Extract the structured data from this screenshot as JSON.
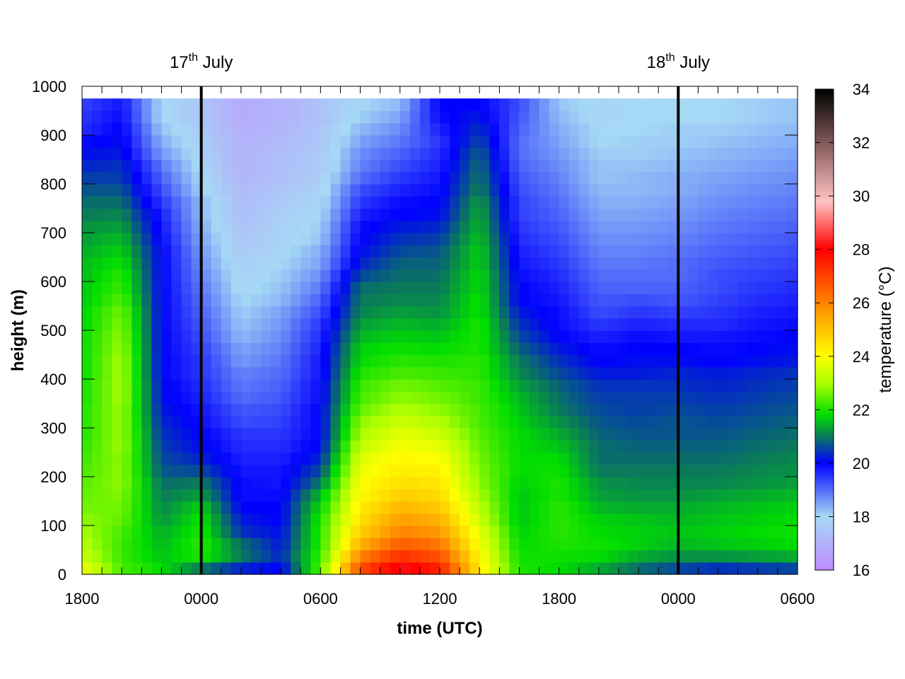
{
  "chart_data": {
    "type": "heatmap",
    "xlabel": "time (UTC)",
    "ylabel": "height (m)",
    "colorbar_label": "temperature (°C)",
    "x_tick_labels": [
      "1800",
      "0000",
      "0600",
      "1200",
      "1800",
      "0000",
      "0600"
    ],
    "x_range_hours": [
      0,
      36
    ],
    "ylim": [
      0,
      1000
    ],
    "y_ticks": [
      0,
      100,
      200,
      300,
      400,
      500,
      600,
      700,
      800,
      900,
      1000
    ],
    "colorbar_range": [
      16,
      34
    ],
    "colorbar_ticks": [
      16,
      18,
      20,
      22,
      24,
      26,
      28,
      30,
      32,
      34
    ],
    "colormap": [
      {
        "value": 16.0,
        "color": "#bf8cff"
      },
      {
        "value": 18.0,
        "color": "#a6d9f5"
      },
      {
        "value": 20.0,
        "color": "#0000ff"
      },
      {
        "value": 21.0,
        "color": "#0a7a5a"
      },
      {
        "value": 21.8,
        "color": "#00dd00"
      },
      {
        "value": 23.0,
        "color": "#aaff00"
      },
      {
        "value": 24.0,
        "color": "#ffff00"
      },
      {
        "value": 25.5,
        "color": "#ffa500"
      },
      {
        "value": 28.0,
        "color": "#ff0000"
      },
      {
        "value": 29.8,
        "color": "#ffc4c4"
      },
      {
        "value": 31.5,
        "color": "#a07070"
      },
      {
        "value": 34.0,
        "color": "#000000"
      }
    ],
    "heights_m": [
      0,
      25,
      50,
      75,
      100,
      125,
      150,
      175,
      200,
      225,
      250,
      275,
      300,
      325,
      350,
      375,
      400,
      425,
      450,
      475,
      500,
      525,
      550,
      575,
      600,
      625,
      650,
      675,
      700,
      725,
      750,
      775,
      800,
      825,
      850,
      875,
      900,
      925,
      950
    ],
    "profiles": [
      {
        "t": 0,
        "T": [
          23.8,
          23.4,
          23.2,
          23.0,
          22.8,
          22.6,
          22.5,
          22.4,
          22.3,
          22.2,
          22.1,
          22.0,
          22.0,
          22.0,
          21.9,
          21.9,
          21.8,
          21.8,
          21.8,
          21.8,
          21.7,
          21.7,
          21.6,
          21.6,
          21.5,
          21.5,
          21.4,
          21.3,
          21.2,
          21.0,
          20.9,
          20.7,
          20.5,
          20.3,
          20.1,
          19.9,
          19.6,
          19.5,
          19.4
        ]
      },
      {
        "t": 2,
        "T": [
          22.3,
          22.2,
          22.2,
          22.3,
          22.5,
          22.6,
          22.7,
          22.8,
          22.8,
          22.8,
          22.9,
          22.9,
          22.9,
          22.9,
          23.0,
          23.0,
          23.0,
          23.0,
          22.9,
          22.8,
          22.7,
          22.6,
          22.4,
          22.2,
          22.1,
          21.9,
          21.7,
          21.5,
          21.3,
          21.1,
          20.9,
          20.7,
          20.5,
          20.4,
          20.2,
          20.1,
          20.0,
          19.9,
          19.8
        ]
      },
      {
        "t": 4,
        "T": [
          21.8,
          21.6,
          21.5,
          21.4,
          21.2,
          21.1,
          21.0,
          20.9,
          20.7,
          20.6,
          20.5,
          20.4,
          20.3,
          20.2,
          20.1,
          20.1,
          20.0,
          20.0,
          20.0,
          20.0,
          20.0,
          20.0,
          20.0,
          20.0,
          20.0,
          20.0,
          20.0,
          19.9,
          19.8,
          19.7,
          19.5,
          19.3,
          19.1,
          18.9,
          18.6,
          18.4,
          18.2,
          18.0,
          18.0
        ]
      },
      {
        "t": 6,
        "T": [
          21.0,
          22.0,
          22.1,
          22.0,
          21.9,
          21.7,
          21.3,
          21.0,
          20.6,
          20.3,
          20.1,
          20.0,
          19.9,
          19.8,
          19.7,
          19.6,
          19.5,
          19.5,
          19.4,
          19.3,
          19.2,
          19.1,
          19.0,
          18.9,
          18.8,
          18.7,
          18.6,
          18.5,
          18.4,
          18.3,
          18.3,
          18.1,
          18.0,
          17.9,
          17.8,
          17.7,
          17.6,
          17.5,
          17.5
        ]
      },
      {
        "t": 8,
        "T": [
          20.3,
          21.0,
          20.9,
          20.4,
          20.2,
          20.0,
          19.9,
          19.9,
          19.8,
          19.7,
          19.6,
          19.5,
          19.3,
          19.2,
          19.0,
          18.9,
          18.8,
          18.6,
          18.5,
          18.3,
          18.2,
          18.1,
          18.0,
          17.9,
          17.8,
          17.7,
          17.6,
          17.5,
          17.4,
          17.3,
          17.3,
          17.2,
          17.1,
          17.0,
          17.0,
          17.0,
          16.9,
          16.8,
          16.8
        ]
      },
      {
        "t": 10,
        "T": [
          20.0,
          20.3,
          20.2,
          20.1,
          20.0,
          20.0,
          19.9,
          19.8,
          19.8,
          19.7,
          19.6,
          19.5,
          19.4,
          19.3,
          19.2,
          19.1,
          19.0,
          18.9,
          18.8,
          18.7,
          18.6,
          18.5,
          18.3,
          18.2,
          18.1,
          18.0,
          17.9,
          17.8,
          17.8,
          17.7,
          17.6,
          17.5,
          17.4,
          17.3,
          17.3,
          17.2,
          17.1,
          17.0,
          17.0
        ]
      },
      {
        "t": 12,
        "T": [
          22.4,
          22.2,
          22.1,
          22.1,
          22.0,
          21.8,
          21.5,
          21.0,
          20.6,
          20.3,
          20.1,
          20.0,
          20.0,
          20.0,
          19.9,
          19.9,
          19.8,
          19.8,
          19.7,
          19.6,
          19.5,
          19.3,
          19.1,
          18.9,
          18.7,
          18.5,
          18.4,
          18.2,
          18.1,
          18.0,
          17.9,
          17.8,
          17.7,
          17.6,
          17.6,
          17.5,
          17.5,
          17.4,
          17.4
        ]
      },
      {
        "t": 14,
        "T": [
          26.8,
          26.0,
          25.3,
          24.8,
          24.5,
          24.3,
          24.1,
          24.0,
          23.8,
          23.6,
          23.3,
          23.0,
          22.8,
          22.5,
          22.3,
          22.2,
          22.0,
          21.8,
          21.7,
          21.5,
          21.3,
          21.1,
          21.0,
          20.9,
          20.6,
          20.3,
          20.1,
          20.0,
          19.9,
          19.7,
          19.5,
          19.3,
          19.0,
          18.8,
          18.7,
          18.5,
          18.3,
          18.1,
          18.0
        ]
      },
      {
        "t": 16,
        "T": [
          28.2,
          27.3,
          26.6,
          26.0,
          25.6,
          25.2,
          24.8,
          24.5,
          24.3,
          24.1,
          23.9,
          23.7,
          23.4,
          23.1,
          22.8,
          22.6,
          22.3,
          22.1,
          21.9,
          21.7,
          21.5,
          21.3,
          21.1,
          21.0,
          20.9,
          20.8,
          20.6,
          20.4,
          20.2,
          20.0,
          19.9,
          19.7,
          19.5,
          19.3,
          19.1,
          18.9,
          18.7,
          18.5,
          18.3
        ]
      },
      {
        "t": 18,
        "T": [
          27.5,
          26.8,
          26.2,
          25.7,
          25.3,
          24.9,
          24.6,
          24.4,
          24.2,
          24.0,
          23.7,
          23.4,
          23.1,
          22.8,
          22.6,
          22.4,
          22.2,
          22.0,
          21.8,
          21.6,
          21.4,
          21.2,
          21.1,
          21.0,
          20.9,
          20.8,
          20.7,
          20.5,
          20.3,
          20.1,
          20.0,
          19.9,
          19.8,
          19.7,
          19.6,
          19.5,
          19.7,
          19.9,
          20.0
        ]
      },
      {
        "t": 20,
        "T": [
          24.3,
          24.1,
          23.9,
          23.7,
          23.4,
          23.2,
          23.0,
          22.8,
          22.7,
          22.6,
          22.5,
          22.4,
          22.3,
          22.3,
          22.2,
          22.2,
          22.1,
          22.1,
          22.0,
          22.0,
          22.0,
          21.9,
          21.9,
          21.8,
          21.8,
          21.7,
          21.7,
          21.6,
          21.5,
          21.4,
          21.3,
          21.1,
          21.0,
          20.9,
          20.8,
          20.6,
          20.4,
          20.2,
          20.0
        ]
      },
      {
        "t": 22,
        "T": [
          22.0,
          21.9,
          21.8,
          21.7,
          21.6,
          21.6,
          21.6,
          21.7,
          21.8,
          21.8,
          21.8,
          21.8,
          21.7,
          21.6,
          21.5,
          21.3,
          21.1,
          21.0,
          20.8,
          20.6,
          20.4,
          20.2,
          20.0,
          20.0,
          19.9,
          19.8,
          19.7,
          19.6,
          19.5,
          19.4,
          19.4,
          19.3,
          19.2,
          19.1,
          19.0,
          19.0,
          19.1,
          19.2,
          19.3
        ]
      },
      {
        "t": 24,
        "T": [
          21.8,
          21.9,
          22.0,
          22.1,
          22.1,
          22.1,
          22.0,
          22.0,
          21.9,
          21.8,
          21.6,
          21.4,
          21.2,
          21.0,
          20.9,
          20.8,
          20.6,
          20.4,
          20.2,
          20.0,
          19.9,
          19.9,
          19.8,
          19.7,
          19.6,
          19.5,
          19.4,
          19.3,
          19.2,
          19.1,
          19.0,
          18.9,
          18.8,
          18.7,
          18.6,
          18.5,
          18.4,
          18.3,
          18.2
        ]
      },
      {
        "t": 26,
        "T": [
          21.4,
          21.8,
          21.9,
          21.8,
          21.7,
          21.5,
          21.3,
          21.2,
          21.0,
          20.9,
          20.9,
          20.8,
          20.7,
          20.6,
          20.5,
          20.4,
          20.2,
          20.0,
          19.9,
          19.7,
          19.5,
          19.3,
          19.2,
          19.1,
          19.0,
          18.9,
          18.8,
          18.7,
          18.6,
          18.5,
          18.4,
          18.3,
          18.2,
          18.2,
          18.1,
          18.0,
          18.0,
          17.9,
          17.9
        ]
      },
      {
        "t": 28,
        "T": [
          20.9,
          21.4,
          21.7,
          21.7,
          21.6,
          21.4,
          21.2,
          21.1,
          21.0,
          20.9,
          20.8,
          20.7,
          20.6,
          20.5,
          20.5,
          20.4,
          20.2,
          20.1,
          20.0,
          19.9,
          19.7,
          19.5,
          19.3,
          19.1,
          19.0,
          18.9,
          18.8,
          18.7,
          18.6,
          18.5,
          18.4,
          18.3,
          18.3,
          18.2,
          18.1,
          18.1,
          18.0,
          18.0,
          18.0
        ]
      },
      {
        "t": 30,
        "T": [
          20.6,
          21.2,
          21.5,
          21.6,
          21.5,
          21.4,
          21.2,
          21.1,
          21.0,
          20.9,
          20.8,
          20.7,
          20.7,
          20.6,
          20.5,
          20.4,
          20.3,
          20.1,
          20.0,
          19.8,
          19.6,
          19.4,
          19.2,
          19.1,
          19.0,
          19.0,
          18.9,
          18.8,
          18.7,
          18.6,
          18.5,
          18.4,
          18.4,
          18.3,
          18.2,
          18.1,
          18.1,
          18.0,
          18.0
        ]
      },
      {
        "t": 32,
        "T": [
          20.4,
          21.2,
          21.6,
          21.7,
          21.6,
          21.5,
          21.3,
          21.1,
          21.0,
          20.9,
          20.8,
          20.7,
          20.6,
          20.5,
          20.4,
          20.3,
          20.2,
          20.0,
          19.9,
          19.8,
          19.6,
          19.5,
          19.4,
          19.3,
          19.3,
          19.2,
          19.1,
          19.0,
          18.9,
          18.8,
          18.7,
          18.6,
          18.5,
          18.4,
          18.3,
          18.2,
          18.1,
          18.0,
          18.0
        ]
      },
      {
        "t": 34,
        "T": [
          20.5,
          21.3,
          21.7,
          21.8,
          21.7,
          21.6,
          21.4,
          21.2,
          21.1,
          21.0,
          20.9,
          20.8,
          20.7,
          20.6,
          20.5,
          20.4,
          20.3,
          20.1,
          20.0,
          19.9,
          19.8,
          19.7,
          19.6,
          19.5,
          19.4,
          19.3,
          19.2,
          19.1,
          19.0,
          18.9,
          18.8,
          18.7,
          18.6,
          18.5,
          18.4,
          18.3,
          18.2,
          18.1,
          18.1
        ]
      },
      {
        "t": 36,
        "T": [
          20.6,
          21.4,
          21.8,
          21.9,
          21.8,
          21.7,
          21.5,
          21.3,
          21.2,
          21.1,
          21.0,
          20.9,
          20.8,
          20.7,
          20.6,
          20.5,
          20.4,
          20.2,
          20.1,
          20.0,
          19.9,
          19.8,
          19.7,
          19.6,
          19.5,
          19.4,
          19.3,
          19.2,
          19.1,
          19.0,
          18.9,
          18.8,
          18.7,
          18.6,
          18.5,
          18.4,
          18.3,
          18.2,
          18.2
        ]
      }
    ],
    "day_markers": [
      {
        "t": 6,
        "day": "17",
        "suffix": "th",
        "month": "July"
      },
      {
        "t": 30,
        "day": "18",
        "suffix": "th",
        "month": "July"
      }
    ]
  }
}
